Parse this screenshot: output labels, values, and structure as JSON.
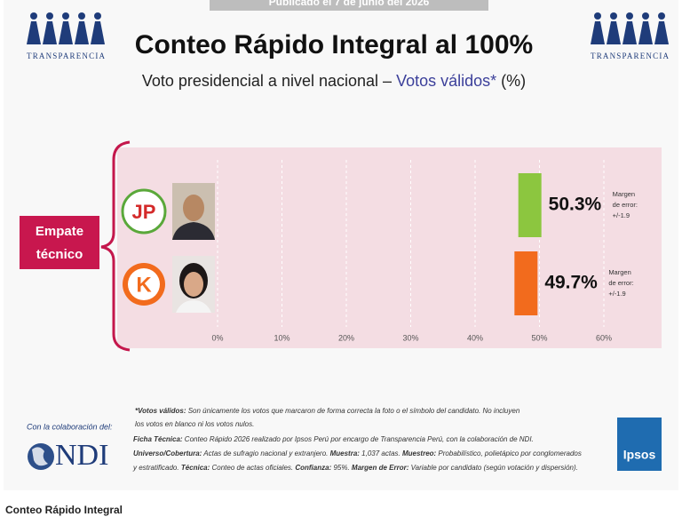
{
  "header": {
    "banner": "Publicado el 7 de junio del 2026",
    "logo_left": "TRANSPARENCIA",
    "logo_right": "TRANSPARENCIA"
  },
  "chart_data": {
    "type": "bar",
    "orientation": "horizontal",
    "title": "Conteo Rápido Integral al 100%",
    "subtitle": "Voto presidencial a nivel nacional –",
    "subtitle_highlight": "Votos válidos*",
    "subtitle_end": "(%)",
    "annotation": [
      "Empate",
      "técnico"
    ],
    "categories": [
      "JP",
      "K"
    ],
    "values": [
      50.3,
      49.7
    ],
    "value_labels": [
      "50.3%",
      "49.7%"
    ],
    "colors": [
      "#8cc63f",
      "#f26b1d"
    ],
    "error_labels": [
      [
        "Margen",
        "de error:",
        "+/-1.9"
      ],
      [
        "Margen",
        "de error:",
        "+/-1.9"
      ]
    ],
    "xlim": [
      0,
      60
    ],
    "xticks": [
      {
        "value": 0,
        "label": "0%"
      },
      {
        "value": 10,
        "label": "10%"
      },
      {
        "value": 20,
        "label": "20%"
      },
      {
        "value": 30,
        "label": "30%"
      },
      {
        "value": 40,
        "label": "40%"
      },
      {
        "value": 50,
        "label": "50%"
      },
      {
        "value": 60,
        "label": "60%"
      }
    ],
    "grid": true
  },
  "footer": {
    "collab": "Con la colaboración del:",
    "ndi": "NDI",
    "ipsos": "Ipsos",
    "caption": "Conteo Rápido Integral",
    "notes": [
      [
        {
          "bold": "*Votos válidos:"
        },
        {
          "text": " Son únicamente los votos que marcaron de forma correcta la foto o el símbolo del candidato. No incluyen"
        }
      ],
      [
        {
          "text": "los votos en blanco ni los votos nulos."
        }
      ],
      [
        {
          "bold": "Ficha Técnica:"
        },
        {
          "text": " Conteo Rápido 2026 realizado por Ipsos Perú por encargo de Transparencia Perú, con la colaboración de NDI."
        }
      ],
      [
        {
          "bold": "Universo/Cobertura:"
        },
        {
          "text": " Actas de sufragio nacional y extranjero. "
        },
        {
          "bold": "Muestra:"
        },
        {
          "text": " 1,037 actas. "
        },
        {
          "bold": "Muestreo:"
        },
        {
          "text": " Probabilístico, polietápico por conglomerados"
        }
      ],
      [
        {
          "text": "y estratificado. "
        },
        {
          "bold": "Técnica:"
        },
        {
          "text": " Conteo de actas oficiales. "
        },
        {
          "bold": "Confianza:"
        },
        {
          "text": " 95%. "
        },
        {
          "bold": "Margen de Error:"
        },
        {
          "text": " Variable por candidato (según votación y dispersión)."
        }
      ]
    ]
  }
}
